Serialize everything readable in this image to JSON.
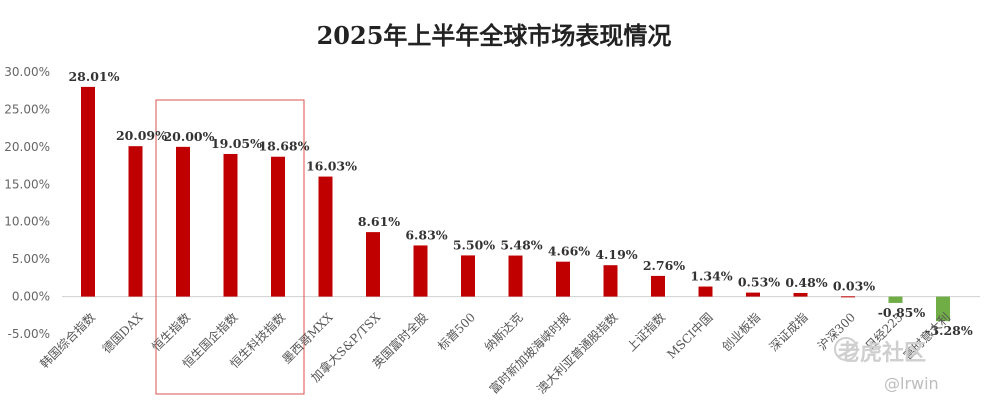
{
  "chart_data": {
    "type": "bar",
    "title": "2025年上半年全球市场表现情况",
    "categories": [
      "韩国综合指数",
      "德国DAX",
      "恒生指数",
      "恒生国企指数",
      "恒生科技指数",
      "墨西哥MXX",
      "加拿大S&P/TSX",
      "英国富时全股",
      "标普500",
      "纳斯达克",
      "富时新加坡海峡时报",
      "澳大利亚普通股指数",
      "上证指数",
      "MSCI中国",
      "创业板指",
      "深证成指",
      "沪深300",
      "日经225",
      "富时意大利"
    ],
    "values": [
      28.01,
      20.09,
      20.0,
      19.05,
      18.68,
      16.03,
      8.61,
      6.83,
      5.5,
      5.48,
      4.66,
      4.19,
      2.76,
      1.34,
      0.53,
      0.48,
      0.03,
      -0.85,
      -3.28
    ],
    "value_labels": [
      "28.01%",
      "20.09%",
      "20.00%",
      "19.05%",
      "18.68%",
      "16.03%",
      "8.61%",
      "6.83%",
      "5.50%",
      "5.48%",
      "4.66%",
      "4.19%",
      "2.76%",
      "1.34%",
      "0.53%",
      "0.48%",
      "0.03%",
      "-0.85%",
      "-3.28%"
    ],
    "y_ticks": [
      "30.00%",
      "25.00%",
      "20.00%",
      "15.00%",
      "10.00%",
      "5.00%",
      "0.00%",
      "-5.00%"
    ],
    "ylim": [
      -5,
      30
    ],
    "colors": {
      "positive": "#c00000",
      "negative": "#70ad47",
      "highlight_box": "#d9534f"
    },
    "highlight": {
      "from_index": 2,
      "to_index": 4
    },
    "grid": false,
    "legend": "none"
  },
  "watermark": {
    "brand": "老虎社区",
    "user": "@lrwin"
  }
}
